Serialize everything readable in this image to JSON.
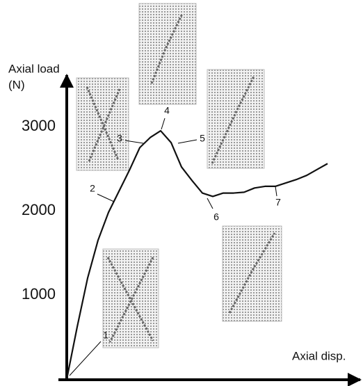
{
  "chart_data": {
    "type": "line",
    "ylabel_lines": [
      "Axial load",
      "(N)"
    ],
    "xlabel": "Axial disp.",
    "categories": [
      null,
      null,
      null,
      null,
      null,
      null,
      null,
      null,
      null,
      null,
      null,
      null,
      null,
      null,
      null,
      null,
      null,
      null,
      null,
      null,
      null,
      null,
      null,
      null,
      null,
      null
    ],
    "series": [
      {
        "color": "#111111",
        "values": [
          0,
          620,
          1200,
          1650,
          1980,
          2230,
          2480,
          2750,
          2870,
          2950,
          2810,
          2520,
          2360,
          2210,
          2170,
          2210,
          2210,
          2220,
          2270,
          2290,
          2290,
          2330,
          2370,
          2420,
          2490,
          2560
        ]
      }
    ],
    "ylim": [
      0,
      3500
    ],
    "yticks": [
      1000,
      2000,
      3000
    ],
    "grid": false,
    "point_labels": [
      "1",
      "2",
      "3",
      "4",
      "5",
      "6",
      "7"
    ]
  }
}
